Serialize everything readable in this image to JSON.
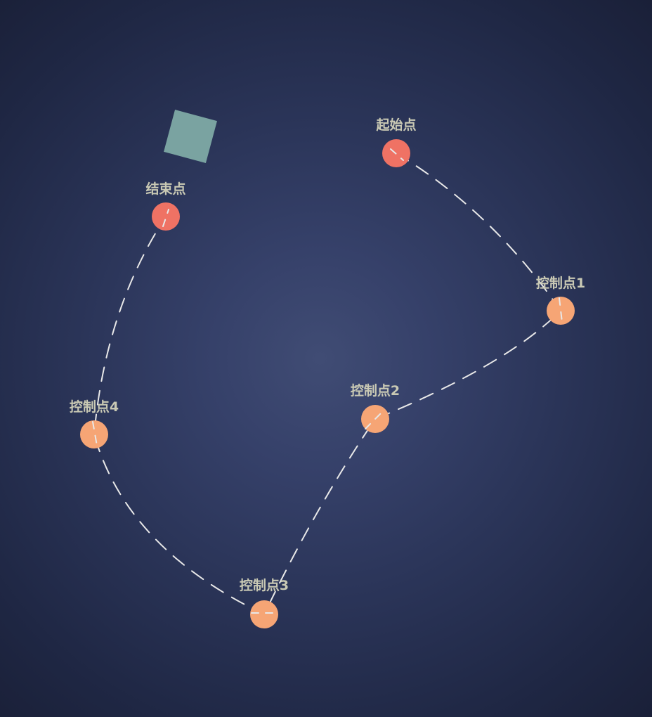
{
  "colors": {
    "background_center": "#404c74",
    "background_edge": "#1a2038",
    "endpoint": "#ef7264",
    "control_point": "#f6a575",
    "path_stroke": "#e8e8e8",
    "label": "#c9c9b4",
    "square": "#7aa3a1"
  },
  "path": {
    "style": "dashed"
  },
  "points": [
    {
      "id": "start",
      "label": "起始点",
      "kind": "endpoint"
    },
    {
      "id": "c1",
      "label": "控制点1",
      "kind": "control"
    },
    {
      "id": "c2",
      "label": "控制点2",
      "kind": "control"
    },
    {
      "id": "c3",
      "label": "控制点3",
      "kind": "control"
    },
    {
      "id": "c4",
      "label": "控制点4",
      "kind": "control"
    },
    {
      "id": "end",
      "label": "结束点",
      "kind": "endpoint"
    }
  ],
  "moving_object": {
    "shape": "square"
  }
}
